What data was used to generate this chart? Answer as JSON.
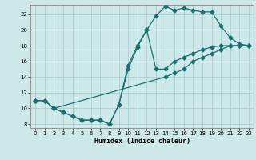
{
  "xlabel": "Humidex (Indice chaleur)",
  "bg_color": "#cce8e8",
  "grid_color": "#aacfcf",
  "line_color": "#1a7070",
  "xlim": [
    -0.5,
    23.5
  ],
  "ylim": [
    7.5,
    23.2
  ],
  "xticks": [
    0,
    1,
    2,
    3,
    4,
    5,
    6,
    7,
    8,
    9,
    10,
    11,
    12,
    13,
    14,
    15,
    16,
    17,
    18,
    19,
    20,
    21,
    22,
    23
  ],
  "yticks": [
    8,
    10,
    12,
    14,
    16,
    18,
    20,
    22
  ],
  "line_upper_x": [
    0,
    1,
    2,
    3,
    4,
    5,
    6,
    7,
    8,
    9,
    10,
    11,
    12,
    13,
    14,
    15,
    16,
    17,
    18,
    19,
    20,
    21,
    22,
    23
  ],
  "line_upper_y": [
    11,
    11,
    10,
    9.5,
    9,
    8.5,
    8.5,
    8.5,
    8,
    10.5,
    15,
    17.8,
    20,
    21.8,
    23,
    22.5,
    22.8,
    22.5,
    22.3,
    22.3,
    20.5,
    19,
    18.2,
    18
  ],
  "line_mid_x": [
    0,
    1,
    2,
    3,
    4,
    5,
    6,
    7,
    8,
    9,
    10,
    11,
    12,
    13,
    14,
    15,
    16,
    17,
    18,
    19,
    20,
    21,
    22,
    23
  ],
  "line_mid_y": [
    11,
    11,
    10,
    9.5,
    9,
    8.5,
    8.5,
    8.5,
    8,
    10.5,
    15.5,
    18,
    20,
    15,
    15,
    16,
    16.5,
    17,
    17.5,
    17.8,
    18,
    18,
    18,
    18
  ],
  "line_lower_x": [
    0,
    1,
    2,
    14,
    15,
    16,
    17,
    18,
    19,
    20,
    21,
    22,
    23
  ],
  "line_lower_y": [
    11,
    11,
    10,
    14,
    14.5,
    15,
    16,
    16.5,
    17,
    17.5,
    18,
    18,
    18
  ]
}
